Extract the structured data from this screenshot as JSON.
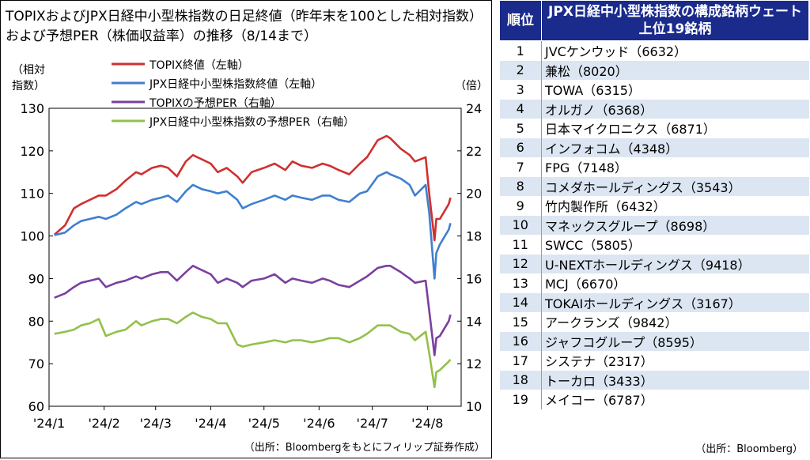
{
  "chart_title": "TOPIXおよびJPX日経中小型株指数の日足終値（昨年末を100とした相対指数）および予想PER（株価収益率）の推移（8/14まで）",
  "left_axis_label": [
    "（相対",
    "指数）"
  ],
  "right_axis_label": "（倍）",
  "source_chart": "（出所：Bloombergをもとにフィリップ証券作成）",
  "chart_data": {
    "type": "line",
    "title": "TOPIXおよびJPX日経中小型株指数の日足終値（昨年末を100とした相対指数）および予想PER（株価収益率）の推移（8/14まで）",
    "ylabel_left": "（相対指数）",
    "ylabel_right": "（倍）",
    "ylim_left": [
      60,
      130
    ],
    "ylim_right": [
      10,
      24
    ],
    "yticks_left": [
      60,
      70,
      80,
      90,
      100,
      110,
      120,
      130
    ],
    "yticks_right": [
      10,
      12,
      14,
      16,
      18,
      20,
      22,
      24
    ],
    "xlim": [
      "2024-01-01",
      "2024-08-20"
    ],
    "xtick_labels": [
      "'24/1",
      "'24/2",
      "'24/3",
      "'24/4",
      "'24/5",
      "'24/6",
      "'24/7",
      "'24/8"
    ],
    "xtick_dates": [
      "2024-01-01",
      "2024-02-01",
      "2024-03-01",
      "2024-04-01",
      "2024-05-01",
      "2024-06-01",
      "2024-07-01",
      "2024-08-01"
    ],
    "grid": false,
    "legend_position": "top-left",
    "series": [
      {
        "name": "TOPIX終値（左軸）",
        "axis": "left",
        "color": "#d03030",
        "x": [
          "2024-01-04",
          "2024-01-10",
          "2024-01-15",
          "2024-01-19",
          "2024-01-24",
          "2024-01-29",
          "2024-02-02",
          "2024-02-08",
          "2024-02-13",
          "2024-02-19",
          "2024-02-22",
          "2024-02-28",
          "2024-03-04",
          "2024-03-08",
          "2024-03-13",
          "2024-03-18",
          "2024-03-22",
          "2024-03-27",
          "2024-04-01",
          "2024-04-05",
          "2024-04-10",
          "2024-04-16",
          "2024-04-19",
          "2024-04-24",
          "2024-05-01",
          "2024-05-07",
          "2024-05-13",
          "2024-05-17",
          "2024-05-22",
          "2024-05-28",
          "2024-06-03",
          "2024-06-07",
          "2024-06-12",
          "2024-06-18",
          "2024-06-24",
          "2024-06-28",
          "2024-07-04",
          "2024-07-09",
          "2024-07-11",
          "2024-07-17",
          "2024-07-22",
          "2024-07-25",
          "2024-07-31",
          "2024-08-02",
          "2024-08-05",
          "2024-08-06",
          "2024-08-08",
          "2024-08-13",
          "2024-08-14"
        ],
        "values": [
          100.3,
          102.5,
          106.5,
          107.5,
          108.5,
          109.5,
          109.5,
          111.0,
          113.0,
          115.0,
          114.5,
          116.0,
          116.5,
          116.0,
          114.0,
          117.5,
          119.0,
          118.0,
          117.0,
          115.0,
          116.0,
          114.0,
          112.5,
          115.0,
          116.0,
          117.0,
          115.5,
          117.5,
          116.5,
          116.0,
          117.0,
          116.5,
          115.5,
          114.5,
          117.0,
          118.5,
          122.5,
          123.5,
          123.0,
          120.5,
          119.0,
          117.5,
          118.5,
          110.0,
          99.0,
          104.0,
          104.0,
          107.5,
          109.0
        ]
      },
      {
        "name": "JPX日経中小型株指数終値（左軸）",
        "axis": "left",
        "color": "#3f7fcf",
        "x": [
          "2024-01-04",
          "2024-01-10",
          "2024-01-15",
          "2024-01-19",
          "2024-01-24",
          "2024-01-29",
          "2024-02-02",
          "2024-02-08",
          "2024-02-13",
          "2024-02-19",
          "2024-02-22",
          "2024-02-28",
          "2024-03-04",
          "2024-03-08",
          "2024-03-13",
          "2024-03-18",
          "2024-03-22",
          "2024-03-27",
          "2024-04-01",
          "2024-04-05",
          "2024-04-10",
          "2024-04-16",
          "2024-04-19",
          "2024-04-24",
          "2024-05-01",
          "2024-05-07",
          "2024-05-13",
          "2024-05-17",
          "2024-05-22",
          "2024-05-28",
          "2024-06-03",
          "2024-06-07",
          "2024-06-12",
          "2024-06-18",
          "2024-06-24",
          "2024-06-28",
          "2024-07-04",
          "2024-07-09",
          "2024-07-11",
          "2024-07-17",
          "2024-07-22",
          "2024-07-25",
          "2024-07-31",
          "2024-08-02",
          "2024-08-05",
          "2024-08-06",
          "2024-08-08",
          "2024-08-13",
          "2024-08-14"
        ],
        "values": [
          100.2,
          100.8,
          102.5,
          103.5,
          104.0,
          104.5,
          104.0,
          105.0,
          106.5,
          108.0,
          107.5,
          108.5,
          109.0,
          109.5,
          108.0,
          110.5,
          112.0,
          111.0,
          110.5,
          110.0,
          110.5,
          108.5,
          106.5,
          107.5,
          108.5,
          109.5,
          108.5,
          109.5,
          109.0,
          108.5,
          109.5,
          109.5,
          108.5,
          108.0,
          110.0,
          110.5,
          114.0,
          115.0,
          114.5,
          113.5,
          112.0,
          109.5,
          112.0,
          105.5,
          90.0,
          96.0,
          98.0,
          101.5,
          103.0
        ]
      },
      {
        "name": "TOPIXの予想PER（右軸）",
        "axis": "right",
        "color": "#7a3f9f",
        "x": [
          "2024-01-04",
          "2024-01-10",
          "2024-01-15",
          "2024-01-19",
          "2024-01-24",
          "2024-01-29",
          "2024-02-02",
          "2024-02-08",
          "2024-02-13",
          "2024-02-19",
          "2024-02-22",
          "2024-02-28",
          "2024-03-04",
          "2024-03-08",
          "2024-03-13",
          "2024-03-18",
          "2024-03-22",
          "2024-03-27",
          "2024-04-01",
          "2024-04-05",
          "2024-04-10",
          "2024-04-16",
          "2024-04-19",
          "2024-04-24",
          "2024-05-01",
          "2024-05-07",
          "2024-05-13",
          "2024-05-17",
          "2024-05-22",
          "2024-05-28",
          "2024-06-03",
          "2024-06-07",
          "2024-06-12",
          "2024-06-18",
          "2024-06-24",
          "2024-06-28",
          "2024-07-04",
          "2024-07-09",
          "2024-07-11",
          "2024-07-17",
          "2024-07-22",
          "2024-07-25",
          "2024-07-31",
          "2024-08-02",
          "2024-08-05",
          "2024-08-06",
          "2024-08-08",
          "2024-08-13",
          "2024-08-14"
        ],
        "values": [
          15.1,
          15.3,
          15.6,
          15.8,
          15.9,
          16.0,
          15.6,
          15.8,
          15.9,
          16.1,
          16.0,
          16.2,
          16.3,
          16.3,
          15.9,
          16.3,
          16.6,
          16.4,
          16.2,
          15.8,
          16.0,
          15.8,
          15.6,
          15.9,
          16.0,
          16.2,
          15.8,
          16.0,
          15.9,
          15.8,
          16.0,
          15.9,
          15.7,
          15.6,
          15.9,
          16.1,
          16.5,
          16.6,
          16.6,
          16.3,
          16.0,
          15.8,
          15.9,
          14.5,
          12.4,
          13.2,
          13.3,
          14.0,
          14.3
        ]
      },
      {
        "name": "JPX日経中小型株指数の予想PER（右軸）",
        "axis": "right",
        "color": "#93c04b",
        "x": [
          "2024-01-04",
          "2024-01-10",
          "2024-01-15",
          "2024-01-19",
          "2024-01-24",
          "2024-01-29",
          "2024-02-02",
          "2024-02-08",
          "2024-02-13",
          "2024-02-19",
          "2024-02-22",
          "2024-02-28",
          "2024-03-04",
          "2024-03-08",
          "2024-03-13",
          "2024-03-18",
          "2024-03-22",
          "2024-03-27",
          "2024-04-01",
          "2024-04-05",
          "2024-04-10",
          "2024-04-16",
          "2024-04-19",
          "2024-04-24",
          "2024-05-01",
          "2024-05-07",
          "2024-05-13",
          "2024-05-17",
          "2024-05-22",
          "2024-05-28",
          "2024-06-03",
          "2024-06-07",
          "2024-06-12",
          "2024-06-18",
          "2024-06-24",
          "2024-06-28",
          "2024-07-04",
          "2024-07-09",
          "2024-07-11",
          "2024-07-17",
          "2024-07-22",
          "2024-07-25",
          "2024-07-31",
          "2024-08-02",
          "2024-08-05",
          "2024-08-06",
          "2024-08-08",
          "2024-08-13",
          "2024-08-14"
        ],
        "values": [
          13.4,
          13.5,
          13.6,
          13.8,
          13.9,
          14.1,
          13.3,
          13.5,
          13.6,
          14.0,
          13.8,
          14.0,
          14.1,
          14.1,
          13.9,
          14.2,
          14.4,
          14.2,
          14.1,
          13.9,
          13.9,
          12.9,
          12.8,
          12.9,
          13.0,
          13.1,
          13.0,
          13.1,
          13.1,
          13.0,
          13.1,
          13.2,
          13.2,
          13.0,
          13.2,
          13.4,
          13.8,
          13.8,
          13.8,
          13.5,
          13.4,
          13.1,
          13.5,
          12.5,
          10.9,
          11.6,
          11.7,
          12.1,
          12.2
        ]
      }
    ]
  },
  "table": {
    "header_rank": "順位",
    "header_name": "JPX日経中小型株指数の構成銘柄ウェート上位19銘柄",
    "rows": [
      {
        "rank": "1",
        "name": "JVCケンウッド（6632）"
      },
      {
        "rank": "2",
        "name": "兼松（8020）"
      },
      {
        "rank": "3",
        "name": "TOWA（6315）"
      },
      {
        "rank": "4",
        "name": "オルガノ（6368）"
      },
      {
        "rank": "5",
        "name": "日本マイクロニクス（6871）"
      },
      {
        "rank": "6",
        "name": "インフォコム（4348）"
      },
      {
        "rank": "7",
        "name": "FPG（7148）"
      },
      {
        "rank": "8",
        "name": "コメダホールディングス（3543）"
      },
      {
        "rank": "9",
        "name": "竹内製作所（6432）"
      },
      {
        "rank": "10",
        "name": "マネックスグループ（8698）"
      },
      {
        "rank": "11",
        "name": "SWCC（5805）"
      },
      {
        "rank": "12",
        "name": "U-NEXTホールディングス（9418）"
      },
      {
        "rank": "13",
        "name": "MCJ（6670）"
      },
      {
        "rank": "14",
        "name": "TOKAIホールディングス（3167）"
      },
      {
        "rank": "15",
        "name": "アークランズ（9842）"
      },
      {
        "rank": "16",
        "name": "ジャフコグループ（8595）"
      },
      {
        "rank": "17",
        "name": "システナ（2317）"
      },
      {
        "rank": "18",
        "name": "トーカロ（3433）"
      },
      {
        "rank": "19",
        "name": "メイコー（6787）"
      }
    ],
    "source": "（出所：Bloomberg）",
    "header_color": "#1a2b8c",
    "stripe_color": "#dce6f2"
  }
}
